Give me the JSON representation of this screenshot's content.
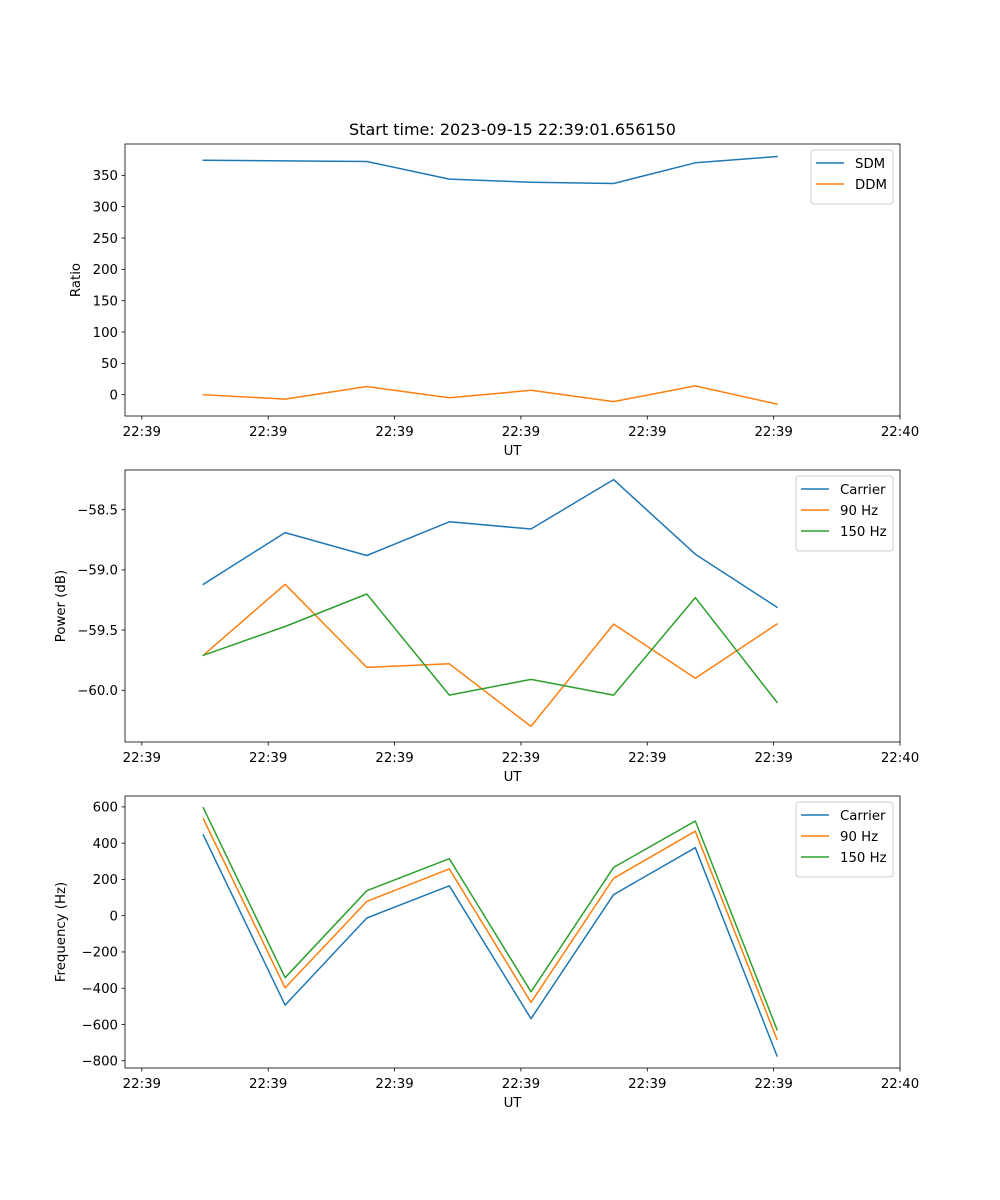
{
  "chart_data": [
    {
      "type": "line",
      "title": "Start time: 2023-09-15 22:39:01.656150",
      "xlabel": "UT",
      "ylabel": "Ratio",
      "xlim": [
        -0.2,
        9.0
      ],
      "ylim": [
        -34,
        400
      ],
      "x_ticks": [
        0,
        1.5,
        3,
        4.5,
        6,
        7.5,
        9
      ],
      "x_tick_labels": [
        "22:39",
        "22:39",
        "22:39",
        "22:39",
        "22:39",
        "22:39",
        "22:40"
      ],
      "y_ticks": [
        0,
        50,
        100,
        150,
        200,
        250,
        300,
        350
      ],
      "y_tick_labels": [
        "0",
        "50",
        "100",
        "150",
        "200",
        "250",
        "300",
        "350"
      ],
      "legend_position": "top-right",
      "x": [
        0.73,
        1.7,
        2.67,
        3.65,
        4.62,
        5.6,
        6.57,
        7.54
      ],
      "series": [
        {
          "name": "SDM",
          "color": "#1f77b4",
          "values": [
            374,
            373,
            372,
            344,
            339,
            337,
            370,
            380
          ]
        },
        {
          "name": "DDM",
          "color": "#ff7f0e",
          "values": [
            0,
            -7,
            13,
            -5,
            7,
            -11,
            14,
            -15
          ]
        }
      ]
    },
    {
      "type": "line",
      "title": "",
      "xlabel": "UT",
      "ylabel": "Power (dB)",
      "xlim": [
        -0.2,
        9.0
      ],
      "ylim": [
        -60.43,
        -58.17
      ],
      "x_ticks": [
        0,
        1.5,
        3,
        4.5,
        6,
        7.5,
        9
      ],
      "x_tick_labels": [
        "22:39",
        "22:39",
        "22:39",
        "22:39",
        "22:39",
        "22:39",
        "22:40"
      ],
      "y_ticks": [
        -60.0,
        -59.5,
        -59.0,
        -58.5
      ],
      "y_tick_labels": [
        "−60.0",
        "−59.5",
        "−59.0",
        "−58.5"
      ],
      "legend_position": "top-right",
      "x": [
        0.73,
        1.7,
        2.67,
        3.65,
        4.62,
        5.6,
        6.57,
        7.54
      ],
      "series": [
        {
          "name": "Carrier",
          "color": "#1f77b4",
          "values": [
            -59.12,
            -58.69,
            -58.88,
            -58.6,
            -58.66,
            -58.25,
            -58.87,
            -59.31
          ]
        },
        {
          "name": "90 Hz",
          "color": "#ff7f0e",
          "values": [
            -59.71,
            -59.12,
            -59.81,
            -59.78,
            -60.3,
            -59.45,
            -59.9,
            -59.45
          ]
        },
        {
          "name": "150 Hz",
          "color": "#2ca02c",
          "values": [
            -59.71,
            -59.47,
            -59.2,
            -60.04,
            -59.91,
            -60.04,
            -59.23,
            -60.1
          ]
        }
      ]
    },
    {
      "type": "line",
      "title": "",
      "xlabel": "UT",
      "ylabel": "Frequency (Hz)",
      "xlim": [
        -0.2,
        9.0
      ],
      "ylim": [
        -840,
        660
      ],
      "x_ticks": [
        0,
        1.5,
        3,
        4.5,
        6,
        7.5,
        9
      ],
      "x_tick_labels": [
        "22:39",
        "22:39",
        "22:39",
        "22:39",
        "22:39",
        "22:39",
        "22:40"
      ],
      "y_ticks": [
        -800,
        -600,
        -400,
        -200,
        0,
        200,
        400,
        600
      ],
      "y_tick_labels": [
        "−800",
        "−600",
        "−400",
        "−200",
        "0",
        "200",
        "400",
        "600"
      ],
      "legend_position": "top-right",
      "x": [
        0.73,
        1.7,
        2.67,
        3.65,
        4.62,
        5.6,
        6.57,
        7.54
      ],
      "series": [
        {
          "name": "Carrier",
          "color": "#1f77b4",
          "values": [
            445,
            -493,
            -13,
            165,
            -568,
            116,
            375,
            -773
          ]
        },
        {
          "name": "90 Hz",
          "color": "#ff7f0e",
          "values": [
            535,
            -398,
            79,
            258,
            -478,
            206,
            466,
            -683
          ]
        },
        {
          "name": "150 Hz",
          "color": "#2ca02c",
          "values": [
            595,
            -342,
            138,
            314,
            -420,
            266,
            522,
            -628
          ]
        }
      ]
    }
  ]
}
